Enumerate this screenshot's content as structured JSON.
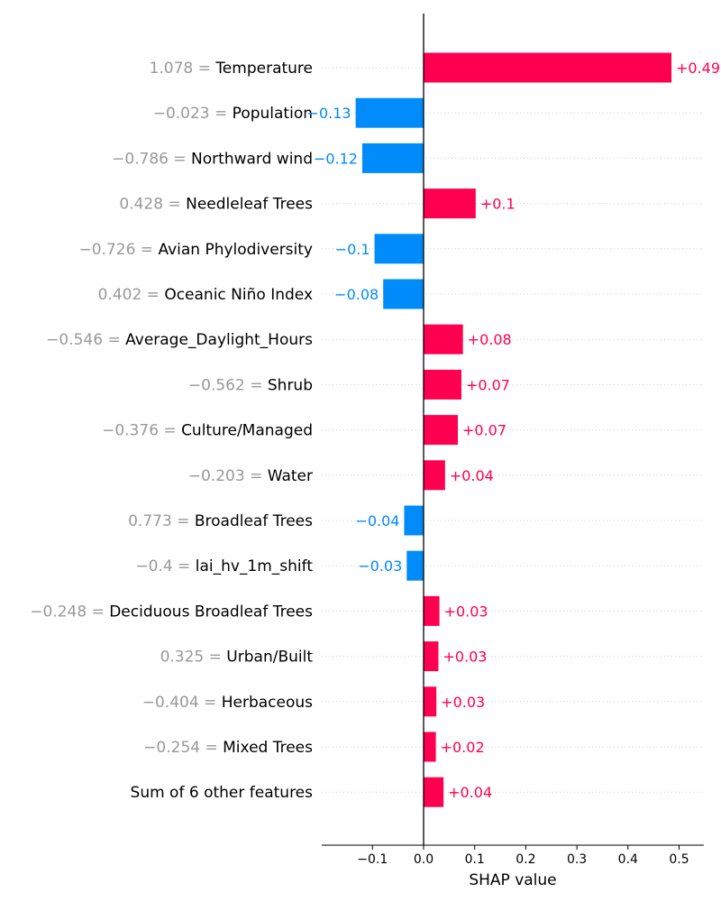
{
  "chart_data": {
    "type": "bar",
    "orientation": "horizontal",
    "xlabel": "SHAP value",
    "xlim": [
      -0.2,
      0.55
    ],
    "xticks": [
      {
        "value": -0.1,
        "label": "−0.1"
      },
      {
        "value": 0.0,
        "label": "0.0"
      },
      {
        "value": 0.1,
        "label": "0.1"
      },
      {
        "value": 0.2,
        "label": "0.2"
      },
      {
        "value": 0.3,
        "label": "0.3"
      },
      {
        "value": 0.4,
        "label": "0.4"
      },
      {
        "value": 0.5,
        "label": "0.5"
      }
    ],
    "grid": "dotted horizontal row lines",
    "colors": {
      "positive": "#ff0051",
      "negative": "#008bfb",
      "feature_value": "#999999"
    },
    "features": [
      {
        "value": "1.078 =",
        "name": "Temperature",
        "shap": 0.485,
        "label": "+0.49"
      },
      {
        "value": "−0.023 =",
        "name": "Population",
        "shap": -0.133,
        "label": "−0.13"
      },
      {
        "value": "−0.786 =",
        "name": "Northward wind",
        "shap": -0.12,
        "label": "−0.12"
      },
      {
        "value": "0.428 =",
        "name": "Needleleaf Trees",
        "shap": 0.102,
        "label": "+0.1"
      },
      {
        "value": "−0.726 =",
        "name": "Avian Phylodiversity",
        "shap": -0.096,
        "label": "−0.1"
      },
      {
        "value": "0.402 =",
        "name": "Oceanic Niño Index",
        "shap": -0.079,
        "label": "−0.08"
      },
      {
        "value": "−0.546 =",
        "name": "Average_Daylight_Hours",
        "shap": 0.077,
        "label": "+0.08"
      },
      {
        "value": "−0.562 =",
        "name": "Shrub",
        "shap": 0.074,
        "label": "+0.07"
      },
      {
        "value": "−0.376 =",
        "name": "Culture/Managed",
        "shap": 0.067,
        "label": "+0.07"
      },
      {
        "value": "−0.203 =",
        "name": "Water",
        "shap": 0.042,
        "label": "+0.04"
      },
      {
        "value": "0.773 =",
        "name": "Broadleaf Trees",
        "shap": -0.038,
        "label": "−0.04"
      },
      {
        "value": "−0.4 =",
        "name": "lai_hv_1m_shift",
        "shap": -0.033,
        "label": "−0.03"
      },
      {
        "value": "−0.248 =",
        "name": "Deciduous Broadleaf Trees",
        "shap": 0.031,
        "label": "+0.03"
      },
      {
        "value": "0.325 =",
        "name": "Urban/Built",
        "shap": 0.029,
        "label": "+0.03"
      },
      {
        "value": "−0.404 =",
        "name": "Herbaceous",
        "shap": 0.025,
        "label": "+0.03"
      },
      {
        "value": "−0.254 =",
        "name": "Mixed Trees",
        "shap": 0.024,
        "label": "+0.02"
      },
      {
        "value": "",
        "name": "Sum of 6 other features",
        "shap": 0.039,
        "label": "+0.04"
      }
    ]
  }
}
